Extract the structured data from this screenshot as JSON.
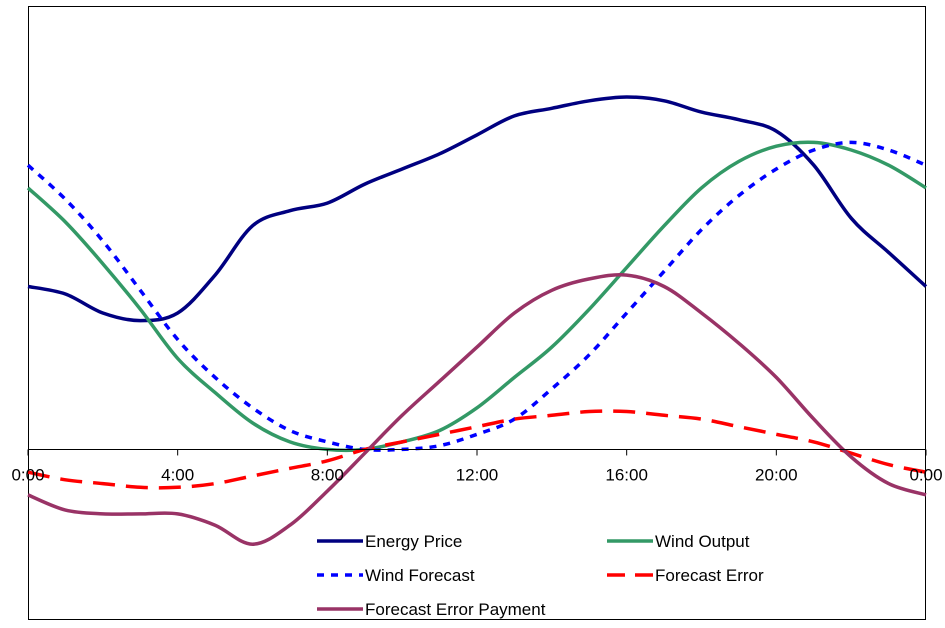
{
  "chart_data": {
    "type": "line",
    "title": "",
    "xlabel": "",
    "ylabel": "",
    "x_tick_labels": [
      "0:00",
      "4:00",
      "8:00",
      "12:00",
      "16:00",
      "20:00",
      "0:00"
    ],
    "x_hours": [
      0,
      1,
      2,
      3,
      4,
      5,
      6,
      7,
      8,
      9,
      10,
      11,
      12,
      13,
      14,
      15,
      16,
      17,
      18,
      19,
      20,
      21,
      22,
      23,
      24
    ],
    "xlim": [
      0,
      24
    ],
    "ylim": [
      -0.45,
      1.17
    ],
    "grid": false,
    "legend_position": "bottom",
    "series": [
      {
        "name": "Energy Price",
        "color": "#000080",
        "dash": "solid",
        "values": [
          0.43,
          0.41,
          0.36,
          0.34,
          0.36,
          0.46,
          0.59,
          0.63,
          0.65,
          0.7,
          0.74,
          0.78,
          0.83,
          0.88,
          0.9,
          0.92,
          0.93,
          0.92,
          0.89,
          0.87,
          0.84,
          0.75,
          0.61,
          0.52,
          0.43
        ]
      },
      {
        "name": "Wind Output",
        "color": "#339966",
        "dash": "solid",
        "values": [
          0.69,
          0.6,
          0.49,
          0.37,
          0.24,
          0.15,
          0.07,
          0.02,
          0.0,
          0.0,
          0.02,
          0.05,
          0.11,
          0.19,
          0.27,
          0.37,
          0.48,
          0.59,
          0.69,
          0.76,
          0.8,
          0.81,
          0.79,
          0.75,
          0.69
        ]
      },
      {
        "name": "Wind Forecast",
        "color": "#0000FF",
        "dash": "dotted",
        "values": [
          0.75,
          0.66,
          0.55,
          0.42,
          0.29,
          0.19,
          0.11,
          0.05,
          0.02,
          0.0,
          0.0,
          0.01,
          0.04,
          0.08,
          0.16,
          0.25,
          0.36,
          0.47,
          0.58,
          0.67,
          0.74,
          0.79,
          0.81,
          0.79,
          0.75
        ]
      },
      {
        "name": "Forecast Error",
        "color": "#FF0000",
        "dash": "dashed",
        "values": [
          -0.06,
          -0.08,
          -0.09,
          -0.1,
          -0.1,
          -0.09,
          -0.07,
          -0.05,
          -0.03,
          0.0,
          0.02,
          0.04,
          0.06,
          0.08,
          0.09,
          0.1,
          0.1,
          0.09,
          0.08,
          0.06,
          0.04,
          0.02,
          -0.01,
          -0.04,
          -0.06
        ]
      },
      {
        "name": "Forecast Error Payment",
        "color": "#993366",
        "dash": "solid",
        "values": [
          -0.12,
          -0.16,
          -0.17,
          -0.17,
          -0.17,
          -0.2,
          -0.25,
          -0.2,
          -0.11,
          -0.01,
          0.09,
          0.18,
          0.27,
          0.36,
          0.42,
          0.45,
          0.46,
          0.43,
          0.36,
          0.28,
          0.19,
          0.08,
          -0.02,
          -0.09,
          -0.12
        ]
      }
    ]
  }
}
